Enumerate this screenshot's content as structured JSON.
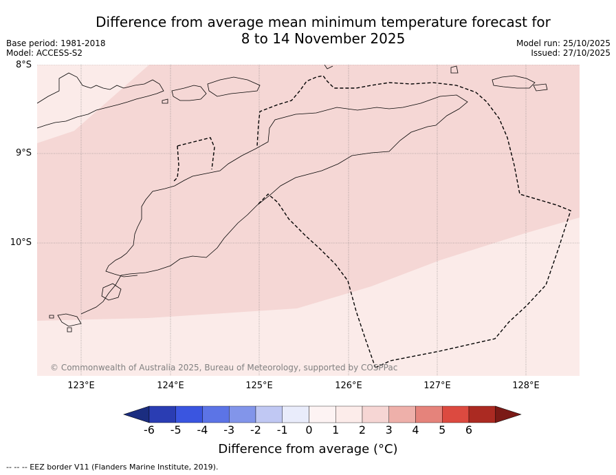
{
  "title_line1": "Difference from average mean minimum temperature forecast for",
  "title_line2": "8 to 14 November 2025",
  "base_period": "Base period: 1981-2018",
  "model": "Model: ACCESS-S2",
  "model_run": "Model run: 25/10/2025",
  "issued": "Issued: 27/10/2025",
  "copyright": "© Commonwealth of Australia 2025, Bureau of Meteorology, supported by COSPPac",
  "lat_labels": [
    "8°S",
    "9°S",
    "10°S"
  ],
  "lon_labels": [
    "123°E",
    "124°E",
    "125°E",
    "126°E",
    "127°E",
    "128°E"
  ],
  "colorbar": {
    "title": "Difference from average (°C)",
    "tick_labels": [
      "-6",
      "-5",
      "-4",
      "-3",
      "-2",
      "-1",
      "0",
      "1",
      "2",
      "3",
      "4",
      "5",
      "6"
    ],
    "colors": [
      "#1b2d80",
      "#2a3db3",
      "#3a55e0",
      "#5c74e6",
      "#8295ea",
      "#c0c8f3",
      "#e9ecfb",
      "#fdf3f3",
      "#fcecea",
      "#f6d6d4",
      "#eeb0aa",
      "#e5837b",
      "#dc4a40",
      "#ab2a22",
      "#7b1a16"
    ]
  },
  "map_colors": {
    "anomaly_0_1": "#fbebe9",
    "anomaly_1_2": "#f5d7d5",
    "eez_line": "#000000"
  },
  "footnote": "--  --  -- EEZ border V11 (Flanders Marine Institute, 2019)."
}
